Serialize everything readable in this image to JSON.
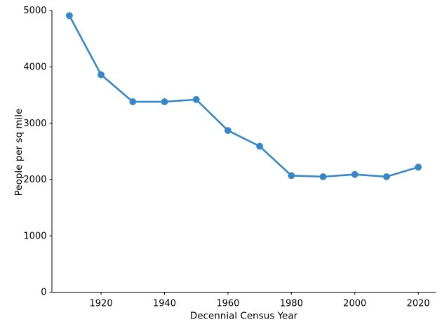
{
  "figure": {
    "background": "#ffffff",
    "axis_color": "#000000",
    "text_color": "#000000"
  },
  "chart_data": {
    "type": "line",
    "title": "",
    "xlabel": "Decennial Census Year",
    "ylabel": "People per sq mile",
    "x": [
      1910,
      1920,
      1930,
      1940,
      1950,
      1960,
      1970,
      1980,
      1990,
      2000,
      2010,
      2020
    ],
    "series": [
      {
        "name": "People per sq mile",
        "values": [
          4910,
          3860,
          3380,
          3380,
          3420,
          2870,
          2590,
          2070,
          2050,
          2090,
          2050,
          2220
        ]
      }
    ],
    "xticks": [
      1920,
      1940,
      1960,
      1980,
      2000,
      2020
    ],
    "yticks": [
      0,
      1000,
      2000,
      3000,
      4000,
      5000
    ],
    "xlim": [
      1904.5,
      2025.5
    ],
    "ylim": [
      0,
      5000
    ],
    "grid": false,
    "legend_position": "none",
    "line_color": "#3787c8",
    "marker": "circle",
    "marker_color": "#3787c8"
  }
}
